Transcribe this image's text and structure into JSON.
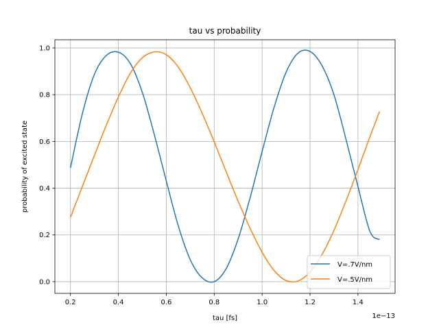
{
  "chart_data": {
    "type": "line",
    "title": "tau vs probability",
    "xlabel": "tau [fs]",
    "ylabel": "probability of excited state",
    "x_offset_label": "1e−13",
    "xlim": [
      0.135,
      1.555
    ],
    "ylim": [
      -0.05,
      1.035
    ],
    "x_ticks": [
      0.2,
      0.4,
      0.6,
      0.8,
      1.0,
      1.2,
      1.4
    ],
    "x_tick_labels": [
      "0.2",
      "0.4",
      "0.6",
      "0.8",
      "1.0",
      "1.2",
      "1.4"
    ],
    "y_ticks": [
      0.0,
      0.2,
      0.4,
      0.6,
      0.8,
      1.0
    ],
    "y_tick_labels": [
      "0.0",
      "0.2",
      "0.4",
      "0.6",
      "0.8",
      "1.0"
    ],
    "grid": true,
    "legend_position": "lower-right",
    "series": [
      {
        "name": "V=.7V/nm",
        "color": "#1f77b4",
        "x": [
          0.2,
          0.25,
          0.3,
          0.35,
          0.4,
          0.45,
          0.5,
          0.55,
          0.6,
          0.65,
          0.7,
          0.75,
          0.8,
          0.85,
          0.9,
          0.95,
          1.0,
          1.05,
          1.1,
          1.15,
          1.2,
          1.25,
          1.3,
          1.35,
          1.4,
          1.45,
          1.49
        ],
        "y": [
          0.487,
          0.72,
          0.887,
          0.968,
          0.982,
          0.933,
          0.81,
          0.629,
          0.431,
          0.239,
          0.094,
          0.016,
          0.0,
          0.056,
          0.183,
          0.36,
          0.557,
          0.746,
          0.896,
          0.978,
          0.985,
          0.924,
          0.799,
          0.609,
          0.407,
          0.215,
          0.18
        ]
      },
      {
        "name": "V=.5V/nm",
        "color": "#ff7f0e",
        "x": [
          0.2,
          0.25,
          0.3,
          0.35,
          0.4,
          0.45,
          0.5,
          0.55,
          0.6,
          0.65,
          0.7,
          0.75,
          0.8,
          0.85,
          0.9,
          0.95,
          1.0,
          1.05,
          1.1,
          1.15,
          1.2,
          1.25,
          1.3,
          1.35,
          1.4,
          1.45,
          1.49
        ],
        "y": [
          0.275,
          0.408,
          0.54,
          0.67,
          0.79,
          0.892,
          0.958,
          0.983,
          0.971,
          0.918,
          0.83,
          0.72,
          0.598,
          0.47,
          0.344,
          0.228,
          0.126,
          0.048,
          0.005,
          0.003,
          0.041,
          0.116,
          0.22,
          0.345,
          0.48,
          0.62,
          0.728
        ]
      }
    ]
  }
}
